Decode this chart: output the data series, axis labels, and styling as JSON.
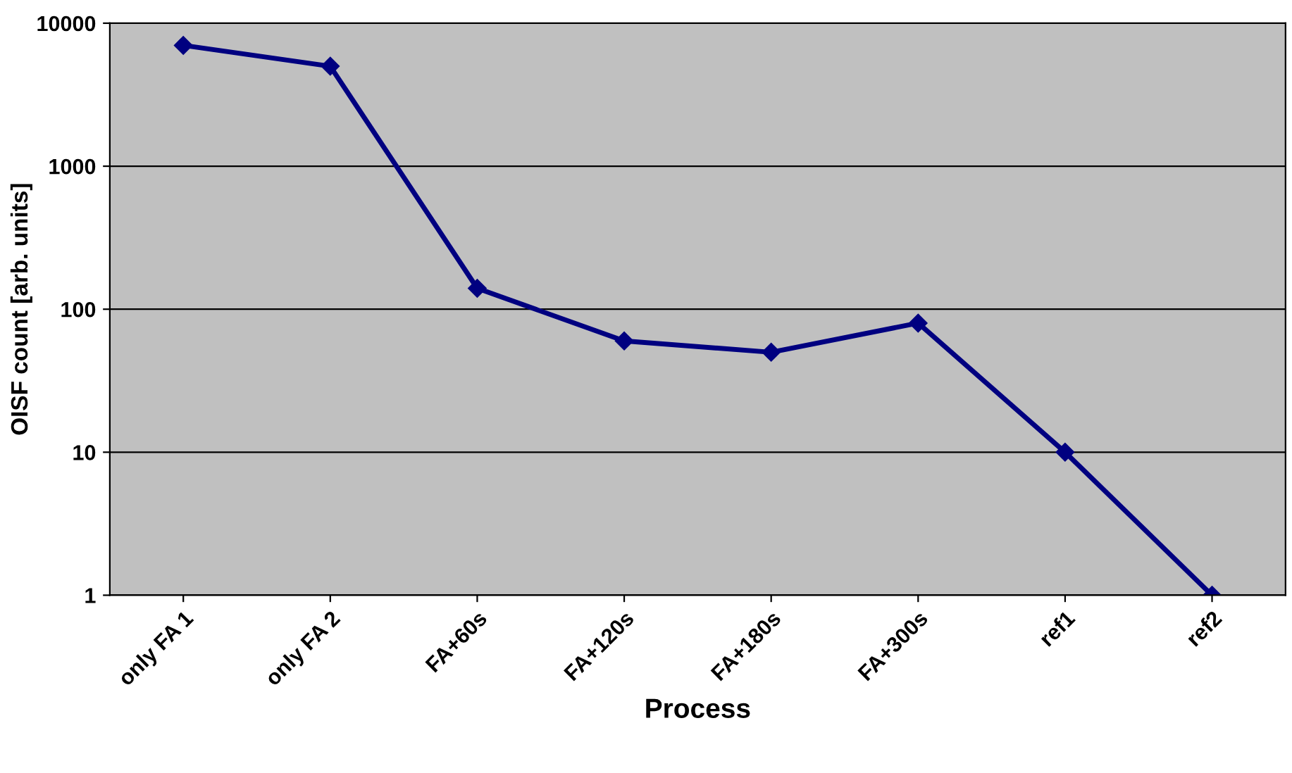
{
  "chart_data": {
    "type": "line",
    "xlabel": "Process",
    "ylabel": "OISF count [arb. units]",
    "categories": [
      "only FA 1",
      "only FA 2",
      "FA+60s",
      "FA+120s",
      "FA+180s",
      "FA+300s",
      "ref1",
      "ref2"
    ],
    "series": [
      {
        "color": "#000080",
        "values": [
          7000,
          5000,
          140,
          60,
          50,
          80,
          10,
          1
        ]
      }
    ],
    "log": "y",
    "ylim": [
      1,
      10000
    ],
    "yticks": [
      1,
      10,
      100,
      1000,
      10000
    ],
    "grid": "y",
    "marker": "diamond",
    "line_style": "solid"
  }
}
